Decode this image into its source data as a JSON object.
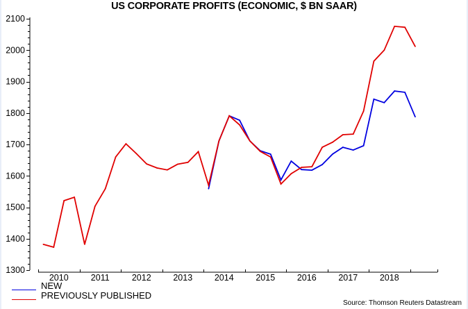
{
  "chart_data": {
    "type": "line",
    "title": "US CORPORATE PROFITS (ECONOMIC, $ BN SAAR)",
    "xlabel": "",
    "ylabel": "",
    "ylim": [
      1300,
      2100
    ],
    "xlim": [
      2010,
      2019.67
    ],
    "yticks": [
      1300,
      1400,
      1500,
      1600,
      1700,
      1800,
      1900,
      2000,
      2100
    ],
    "xtick_labels": [
      "2010",
      "2011",
      "2012",
      "2013",
      "2014",
      "2015",
      "2016",
      "2017",
      "2018"
    ],
    "grid": false,
    "legend_position": "bottom-left",
    "x": [
      "2010Q1",
      "2010Q2",
      "2010Q3",
      "2010Q4",
      "2011Q1",
      "2011Q2",
      "2011Q3",
      "2011Q4",
      "2012Q1",
      "2012Q2",
      "2012Q3",
      "2012Q4",
      "2013Q1",
      "2013Q2",
      "2013Q3",
      "2013Q4",
      "2014Q1",
      "2014Q2",
      "2014Q3",
      "2014Q4",
      "2015Q1",
      "2015Q2",
      "2015Q3",
      "2015Q4",
      "2016Q1",
      "2016Q2",
      "2016Q3",
      "2016Q4",
      "2017Q1",
      "2017Q2",
      "2017Q3",
      "2017Q4",
      "2018Q1",
      "2018Q2",
      "2018Q3",
      "2018Q4",
      "2019Q1"
    ],
    "series": [
      {
        "name": "NEW",
        "color": "#0000e0",
        "values": [
          null,
          null,
          null,
          null,
          null,
          null,
          null,
          null,
          null,
          null,
          null,
          null,
          null,
          null,
          null,
          null,
          1559,
          1711,
          1791,
          1777,
          1711,
          1680,
          1669,
          1587,
          1647,
          1620,
          1618,
          1636,
          1669,
          1691,
          1682,
          1696,
          1844,
          1833,
          1870,
          1866,
          1788
        ]
      },
      {
        "name": "PREVIOUSLY PUBLISHED",
        "color": "#e00000",
        "values": [
          1382,
          1373,
          1521,
          1532,
          1382,
          1503,
          1559,
          1660,
          1702,
          1671,
          1638,
          1625,
          1619,
          1637,
          1643,
          1677,
          1570,
          1711,
          1791,
          1762,
          1711,
          1678,
          1660,
          1574,
          1607,
          1627,
          1629,
          1691,
          1707,
          1731,
          1733,
          1806,
          1965,
          2000,
          2076,
          2073,
          2012
        ]
      }
    ],
    "source": "Source: Thomson Reuters Datastream"
  }
}
